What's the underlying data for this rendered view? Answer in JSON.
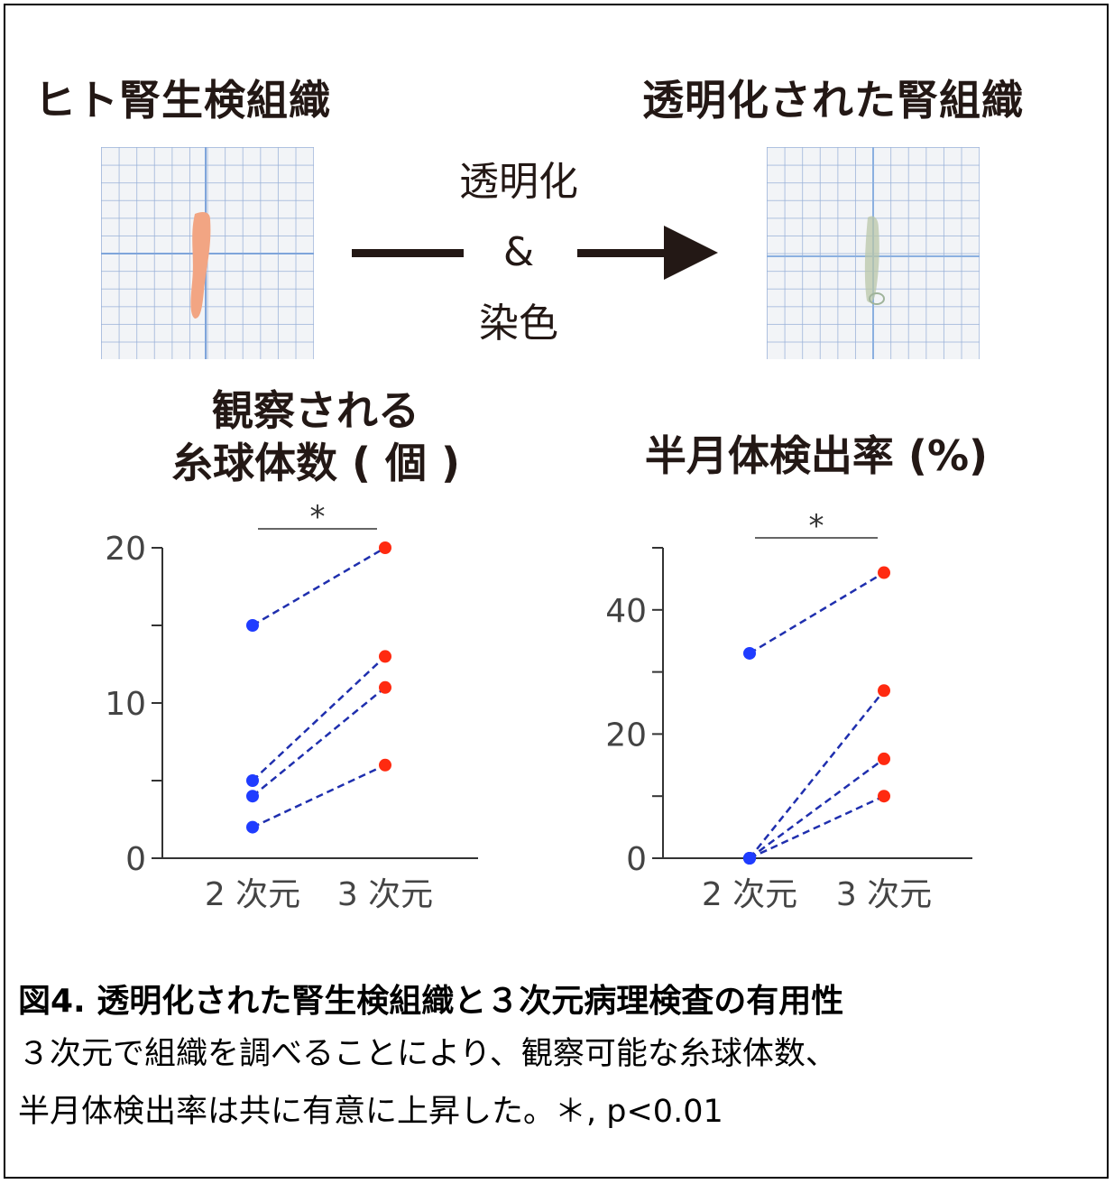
{
  "figure": {
    "left_heading": "ヒト腎生検組織",
    "right_heading": "透明化された腎組織",
    "process": {
      "line1": "透明化",
      "line2": "&",
      "line3": "染色"
    }
  },
  "chart_titles": {
    "left": [
      "観察される",
      "糸球体数 ( 個 )"
    ],
    "right": [
      "半月体検出率 (%)"
    ]
  },
  "significance_marker": "*",
  "colors": {
    "point_2d": "#1f3cff",
    "point_3d": "#ff2a10",
    "line": "#1f2fae",
    "text": "#231815"
  },
  "chart_data": [
    {
      "type": "line",
      "title": "観察される 糸球体数 ( 個 )",
      "categories": [
        "2 次元",
        "3 次元"
      ],
      "ylim": [
        0,
        20
      ],
      "yticks": [
        0,
        10,
        20
      ],
      "ytick_labels": [
        "0",
        "10",
        "20"
      ],
      "significance": "*",
      "pairs": [
        [
          15,
          20
        ],
        [
          5,
          13
        ],
        [
          4,
          11
        ],
        [
          2,
          6
        ]
      ]
    },
    {
      "type": "line",
      "title": "半月体検出率 (%)",
      "categories": [
        "2 次元",
        "3 次元"
      ],
      "ylim": [
        0,
        50
      ],
      "yticks": [
        0,
        20,
        40
      ],
      "ytick_labels": [
        "0",
        "20",
        "40"
      ],
      "significance": "*",
      "pairs": [
        [
          33,
          46
        ],
        [
          0,
          27
        ],
        [
          0,
          16
        ],
        [
          0,
          10
        ]
      ]
    }
  ],
  "caption": {
    "title": "図4.  透明化された腎生検組織と３次元病理検査の有用性",
    "line1": "３次元で組織を調べることにより、観察可能な糸球体数、",
    "line2": "半月体検出率は共に有意に上昇した。＊, p<0.01"
  }
}
